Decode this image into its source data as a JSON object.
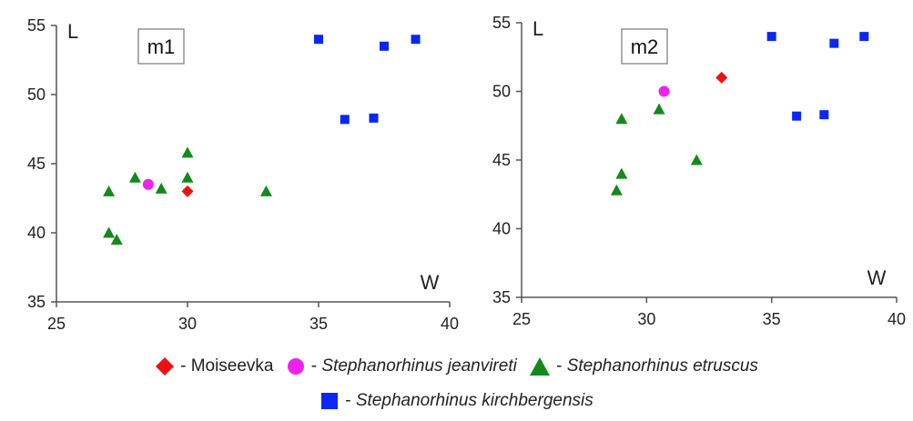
{
  "chart_data": [
    {
      "type": "scatter",
      "title": "",
      "panel_label": "m1",
      "xlabel": "W",
      "ylabel": "L",
      "xlim": [
        25,
        40
      ],
      "ylim": [
        35,
        55
      ],
      "xticks": [
        25,
        30,
        35,
        40
      ],
      "yticks": [
        35,
        40,
        45,
        50,
        55
      ],
      "grid": false,
      "series": [
        {
          "name": "Moiseevka",
          "marker": "diamond",
          "color": "#ee1111",
          "points": [
            {
              "x": 30.0,
              "y": 43.0
            }
          ]
        },
        {
          "name": "Stephanorhinus jeanvireti",
          "marker": "circle",
          "color": "#ee22ee",
          "points": [
            {
              "x": 28.5,
              "y": 43.5
            }
          ]
        },
        {
          "name": "Stephanorhinus etruscus",
          "marker": "triangle",
          "color": "#138a1b",
          "points": [
            {
              "x": 27.0,
              "y": 43.0
            },
            {
              "x": 28.0,
              "y": 44.0
            },
            {
              "x": 29.0,
              "y": 43.2
            },
            {
              "x": 30.0,
              "y": 44.0
            },
            {
              "x": 30.0,
              "y": 45.8
            },
            {
              "x": 33.0,
              "y": 43.0
            },
            {
              "x": 27.0,
              "y": 40.0
            },
            {
              "x": 27.3,
              "y": 39.5
            }
          ]
        },
        {
          "name": "Stephanorhinus kirchbergensis",
          "marker": "square",
          "color": "#0a28f0",
          "points": [
            {
              "x": 35.0,
              "y": 54.0
            },
            {
              "x": 37.5,
              "y": 53.5
            },
            {
              "x": 38.7,
              "y": 54.0
            },
            {
              "x": 36.0,
              "y": 48.2
            },
            {
              "x": 37.1,
              "y": 48.3
            }
          ]
        }
      ]
    },
    {
      "type": "scatter",
      "title": "",
      "panel_label": "m2",
      "xlabel": "W",
      "ylabel": "L",
      "xlim": [
        25,
        40
      ],
      "ylim": [
        35,
        55
      ],
      "xticks": [
        25,
        30,
        35,
        40
      ],
      "yticks": [
        35,
        40,
        45,
        50,
        55
      ],
      "grid": false,
      "series": [
        {
          "name": "Moiseevka",
          "marker": "diamond",
          "color": "#ee1111",
          "points": [
            {
              "x": 33.0,
              "y": 51.0
            }
          ]
        },
        {
          "name": "Stephanorhinus jeanvireti",
          "marker": "circle",
          "color": "#ee22ee",
          "points": [
            {
              "x": 30.7,
              "y": 50.0
            }
          ]
        },
        {
          "name": "Stephanorhinus etruscus",
          "marker": "triangle",
          "color": "#138a1b",
          "points": [
            {
              "x": 29.0,
              "y": 48.0
            },
            {
              "x": 30.5,
              "y": 48.7
            },
            {
              "x": 29.0,
              "y": 44.0
            },
            {
              "x": 28.8,
              "y": 42.8
            },
            {
              "x": 32.0,
              "y": 45.0
            }
          ]
        },
        {
          "name": "Stephanorhinus kirchbergensis",
          "marker": "square",
          "color": "#0a28f0",
          "points": [
            {
              "x": 35.0,
              "y": 54.0
            },
            {
              "x": 37.5,
              "y": 53.5
            },
            {
              "x": 38.7,
              "y": 54.0
            },
            {
              "x": 36.0,
              "y": 48.2
            },
            {
              "x": 37.1,
              "y": 48.3
            }
          ]
        }
      ]
    }
  ],
  "legend": {
    "separator": "-",
    "items": [
      {
        "label": "Moiseevka",
        "marker": "diamond",
        "color": "#ee1111",
        "italic": false
      },
      {
        "label": "Stephanorhinus jeanvireti",
        "marker": "circle",
        "color": "#ee22ee",
        "italic": true
      },
      {
        "label": "Stephanorhinus etruscus",
        "marker": "triangle",
        "color": "#138a1b",
        "italic": true
      },
      {
        "label": "Stephanorhinus kirchbergensis",
        "marker": "square",
        "color": "#0a28f0",
        "italic": true
      }
    ]
  }
}
